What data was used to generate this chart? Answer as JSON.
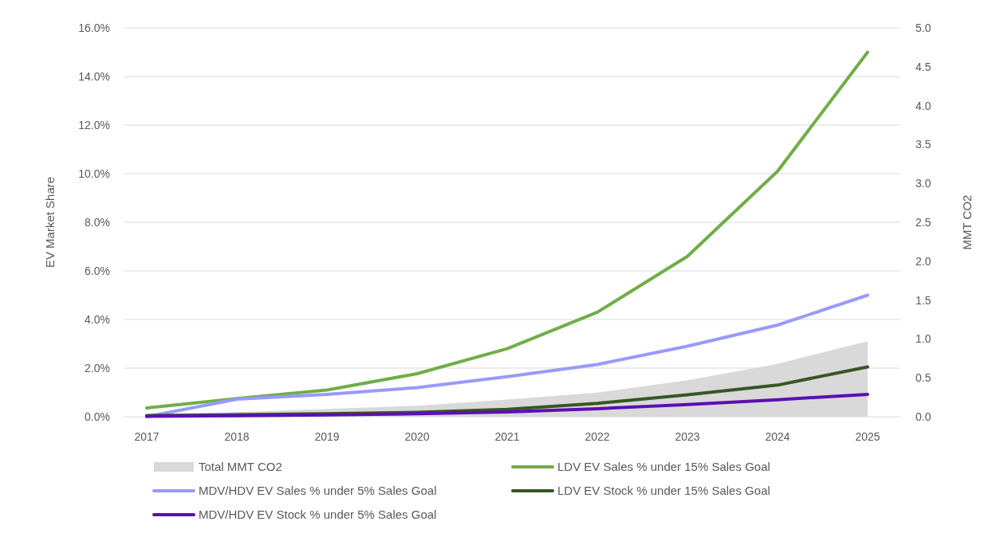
{
  "chart_data": {
    "type": "line",
    "categories": [
      "2017",
      "2018",
      "2019",
      "2020",
      "2021",
      "2022",
      "2023",
      "2024",
      "2025"
    ],
    "ylabel": "EV Market Share",
    "y2label": "MMT CO2",
    "ylim": [
      0,
      16
    ],
    "yticks": [
      {
        "value": 0,
        "label": "0.0%"
      },
      {
        "value": 2,
        "label": "2.0%"
      },
      {
        "value": 4,
        "label": "4.0%"
      },
      {
        "value": 6,
        "label": "6.0%"
      },
      {
        "value": 8,
        "label": "8.0%"
      },
      {
        "value": 10,
        "label": "10.0%"
      },
      {
        "value": 12,
        "label": "12.0%"
      },
      {
        "value": 14,
        "label": "14.0%"
      },
      {
        "value": 16,
        "label": "16.0%"
      }
    ],
    "y2lim": [
      0,
      5
    ],
    "y2ticks": [
      {
        "value": 0,
        "label": "0.0"
      },
      {
        "value": 0.5,
        "label": "0.5"
      },
      {
        "value": 1,
        "label": "1.0"
      },
      {
        "value": 1.5,
        "label": "1.5"
      },
      {
        "value": 2,
        "label": "2.0"
      },
      {
        "value": 2.5,
        "label": "2.5"
      },
      {
        "value": 3,
        "label": "3.0"
      },
      {
        "value": 3.5,
        "label": "3.5"
      },
      {
        "value": 4,
        "label": "4.0"
      },
      {
        "value": 4.5,
        "label": "4.5"
      },
      {
        "value": 5,
        "label": "5.0"
      }
    ],
    "grid": "y",
    "legend": "bottom",
    "series": [
      {
        "name": "Total MMT CO2",
        "type": "area",
        "axis": "y2",
        "color": "#d9d9d9",
        "values": [
          0.03,
          0.06,
          0.1,
          0.14,
          0.22,
          0.31,
          0.47,
          0.68,
          0.97
        ]
      },
      {
        "name": "LDV EV Sales % under 15% Sales Goal",
        "color": "#70ad47",
        "values": [
          0.36,
          0.75,
          1.1,
          1.77,
          2.8,
          4.3,
          6.6,
          10.1,
          15.0
        ]
      },
      {
        "name": "MDV/HDV EV Sales % under 5% Sales Goal",
        "color": "#9999ff",
        "values": [
          0.0,
          0.72,
          0.92,
          1.2,
          1.65,
          2.15,
          2.9,
          3.77,
          5.0
        ]
      },
      {
        "name": "LDV EV Stock % under 15% Sales Goal",
        "color": "#375623",
        "values": [
          0.05,
          0.08,
          0.12,
          0.18,
          0.3,
          0.55,
          0.9,
          1.3,
          2.05
        ]
      },
      {
        "name": "MDV/HDV EV Stock % under 5% Sales Goal",
        "color": "#5b0fb3",
        "values": [
          0.02,
          0.04,
          0.07,
          0.12,
          0.2,
          0.33,
          0.5,
          0.7,
          0.92
        ]
      }
    ]
  }
}
